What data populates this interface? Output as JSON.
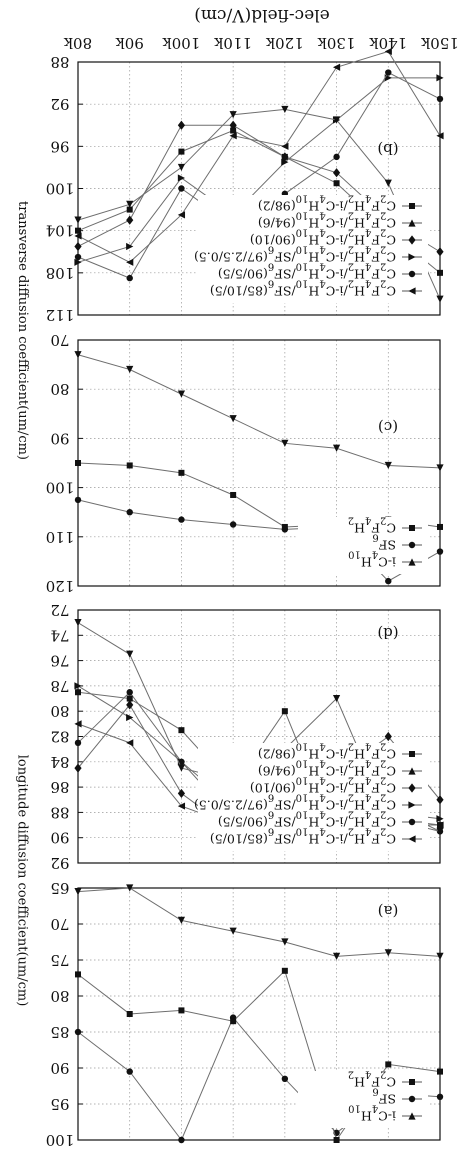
{
  "figure": {
    "xlabel": "elec-field(V/cm)",
    "x_ticks": [
      "80k",
      "90k",
      "100k",
      "110k",
      "120k",
      "130k",
      "140k",
      "150k"
    ],
    "ylabel_transverse": "transverse diffusion coefficient(um/cm)",
    "ylabel_longitude": "longitude diffusion coefficient(um/cm)"
  },
  "chart_data": [
    {
      "type": "line",
      "panel": "(b)",
      "x": [
        80,
        90,
        100,
        110,
        120,
        130,
        140,
        150
      ],
      "y_ticks": [
        "88",
        "92",
        "96",
        "100",
        "104",
        "108",
        "112"
      ],
      "ylim": [
        88,
        112
      ],
      "series": [
        {
          "name": "C2F4H2/i-C4H10/SF6(85/10/5)",
          "marker": "triangle-right",
          "values": [
            107.0,
            105.5,
            99.0,
            102.5,
            97.5,
            93.5,
            89.5,
            89.5
          ]
        },
        {
          "name": "C2F4H2/i-C4H10/SF6(90/5/5)",
          "marker": "circle",
          "values": [
            106.5,
            108.5,
            100.0,
            103.5,
            100.5,
            97.0,
            89.0,
            91.5
          ]
        },
        {
          "name": "C2F4H2/i-C4H10/SF6(97/2.5/0.5)",
          "marker": "triangle-left",
          "values": [
            104.5,
            107.0,
            102.5,
            95.0,
            96.0,
            88.5,
            87.0,
            95.0
          ]
        },
        {
          "name": "C2F4H2/i-C4H10(90/10)",
          "marker": "diamond",
          "values": [
            105.5,
            103.0,
            94.0,
            94.0,
            97.0,
            98.5,
            103.0,
            106.0
          ]
        },
        {
          "name": "C2F4H2/i-C4H10(94/6)",
          "marker": "triangle-down",
          "values": [
            103.0,
            101.5,
            98.0,
            93.0,
            92.5,
            93.5,
            99.5,
            110.5
          ]
        },
        {
          "name": "C2F4H2/i-C4H10(98/2)",
          "marker": "square",
          "values": [
            104.0,
            102.0,
            96.5,
            94.5,
            97.0,
            99.5,
            104.0,
            108.0
          ]
        }
      ]
    },
    {
      "type": "line",
      "panel": "(c)",
      "x": [
        80,
        90,
        100,
        110,
        120,
        130,
        140,
        150
      ],
      "y_ticks": [
        "70",
        "80",
        "90",
        "100",
        "110",
        "120"
      ],
      "ylim": [
        70,
        120
      ],
      "series": [
        {
          "name": "i-C4H10",
          "marker": "triangle-down",
          "values": [
            73.0,
            76.0,
            81.0,
            86.0,
            91.0,
            92.0,
            95.5,
            96.0
          ]
        },
        {
          "name": "SF6",
          "marker": "circle",
          "values": [
            102.5,
            105.0,
            106.5,
            107.5,
            108.5,
            108.0,
            119.0,
            113.0
          ]
        },
        {
          "name": "C2F4H2",
          "marker": "square",
          "values": [
            95.0,
            95.5,
            97.0,
            101.5,
            108.0,
            107.5,
            106.5,
            108.0
          ]
        }
      ]
    },
    {
      "type": "line",
      "panel": "(d)",
      "x": [
        80,
        90,
        100,
        110,
        120,
        130,
        140,
        150
      ],
      "y_ticks": [
        "72",
        "74",
        "76",
        "78",
        "80",
        "82",
        "84",
        "86",
        "88",
        "90",
        "92"
      ],
      "ylim": [
        72,
        92
      ],
      "series": [
        {
          "name": "C2F4H2/i-C4H10/SF6(85/10/5)",
          "marker": "triangle-right",
          "values": [
            78.0,
            80.5,
            84.0,
            87.5,
            89.5,
            86.5,
            88.0,
            88.5
          ]
        },
        {
          "name": "C2F4H2/i-C4H10/SF6(90/5/5)",
          "marker": "circle",
          "values": [
            82.5,
            78.5,
            84.0,
            88.5,
            89.0,
            87.0,
            87.5,
            89.5
          ]
        },
        {
          "name": "C2F4H2/i-C4H10/SF6(97/2.5/0.5)",
          "marker": "triangle-left",
          "values": [
            81.0,
            82.5,
            87.5,
            89.0,
            89.5,
            85.0,
            89.0,
            89.0
          ]
        },
        {
          "name": "C2F4H2/i-C4H10(90/10)",
          "marker": "diamond",
          "values": [
            84.5,
            79.5,
            86.5,
            89.5,
            88.0,
            85.0,
            82.0,
            87.0
          ]
        },
        {
          "name": "C2F4H2/i-C4H10(94/6)",
          "marker": "triangle-down",
          "values": [
            73.0,
            75.5,
            84.5,
            85.5,
            83.0,
            79.0,
            88.5,
            89.5
          ]
        },
        {
          "name": "C2F4H2/i-C4H10(98/2)",
          "marker": "square",
          "values": [
            78.5,
            79.0,
            81.5,
            86.0,
            80.0,
            90.0,
            88.5,
            89.0
          ]
        }
      ]
    },
    {
      "type": "line",
      "panel": "(a)",
      "x": [
        80,
        90,
        100,
        110,
        120,
        130,
        140,
        150
      ],
      "y_ticks": [
        "65",
        "70",
        "75",
        "80",
        "85",
        "90",
        "95",
        "100"
      ],
      "ylim": [
        65,
        100
      ],
      "series": [
        {
          "name": "i-C4H10",
          "marker": "triangle-down",
          "values": [
            65.5,
            65.0,
            69.5,
            71.0,
            72.5,
            74.5,
            74.0,
            74.5
          ]
        },
        {
          "name": "SF6",
          "marker": "circle",
          "values": [
            85.0,
            90.5,
            100.0,
            83.0,
            91.5,
            99.0,
            93.5,
            94.0
          ]
        },
        {
          "name": "C2F4H2",
          "marker": "square",
          "values": [
            77.0,
            82.5,
            82.0,
            83.5,
            76.5,
            100.0,
            89.5,
            90.5
          ]
        }
      ]
    }
  ]
}
